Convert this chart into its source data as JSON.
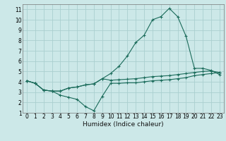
{
  "title": "",
  "xlabel": "Humidex (Indice chaleur)",
  "bg_color": "#cce8e8",
  "grid_color": "#aacfcf",
  "line_color": "#1a6b5a",
  "xlim": [
    -0.5,
    23.5
  ],
  "ylim": [
    1,
    11.5
  ],
  "xticks": [
    0,
    1,
    2,
    3,
    4,
    5,
    6,
    7,
    8,
    9,
    10,
    11,
    12,
    13,
    14,
    15,
    16,
    17,
    18,
    19,
    20,
    21,
    22,
    23
  ],
  "yticks": [
    1,
    2,
    3,
    4,
    5,
    6,
    7,
    8,
    9,
    10,
    11
  ],
  "line1_x": [
    0,
    1,
    2,
    3,
    4,
    5,
    6,
    7,
    8,
    9,
    10,
    11,
    12,
    13,
    14,
    15,
    16,
    17,
    18,
    19,
    20,
    21,
    22,
    23
  ],
  "line1_y": [
    4.1,
    3.85,
    3.2,
    3.1,
    3.1,
    3.4,
    3.5,
    3.7,
    3.8,
    4.3,
    4.8,
    5.5,
    6.5,
    7.8,
    8.5,
    10.0,
    10.3,
    11.1,
    10.3,
    8.4,
    5.3,
    5.3,
    5.1,
    4.7
  ],
  "line2_x": [
    0,
    1,
    2,
    3,
    4,
    5,
    6,
    7,
    8,
    9,
    10,
    11,
    12,
    13,
    14,
    15,
    16,
    17,
    18,
    19,
    20,
    21,
    22,
    23
  ],
  "line2_y": [
    4.1,
    3.85,
    3.2,
    3.1,
    2.7,
    2.5,
    2.3,
    1.6,
    1.2,
    2.6,
    3.85,
    3.85,
    3.9,
    3.9,
    4.0,
    4.1,
    4.15,
    4.2,
    4.3,
    4.4,
    4.6,
    4.7,
    4.8,
    4.9
  ],
  "line3_x": [
    0,
    1,
    2,
    3,
    4,
    5,
    6,
    7,
    8,
    9,
    10,
    11,
    12,
    13,
    14,
    15,
    16,
    17,
    18,
    19,
    20,
    21,
    22,
    23
  ],
  "line3_y": [
    4.1,
    3.85,
    3.2,
    3.1,
    3.1,
    3.4,
    3.5,
    3.7,
    3.8,
    4.3,
    4.15,
    4.2,
    4.25,
    4.3,
    4.4,
    4.5,
    4.55,
    4.6,
    4.7,
    4.8,
    4.9,
    5.0,
    5.05,
    4.9
  ],
  "tick_fontsize": 5.5,
  "xlabel_fontsize": 6.5
}
